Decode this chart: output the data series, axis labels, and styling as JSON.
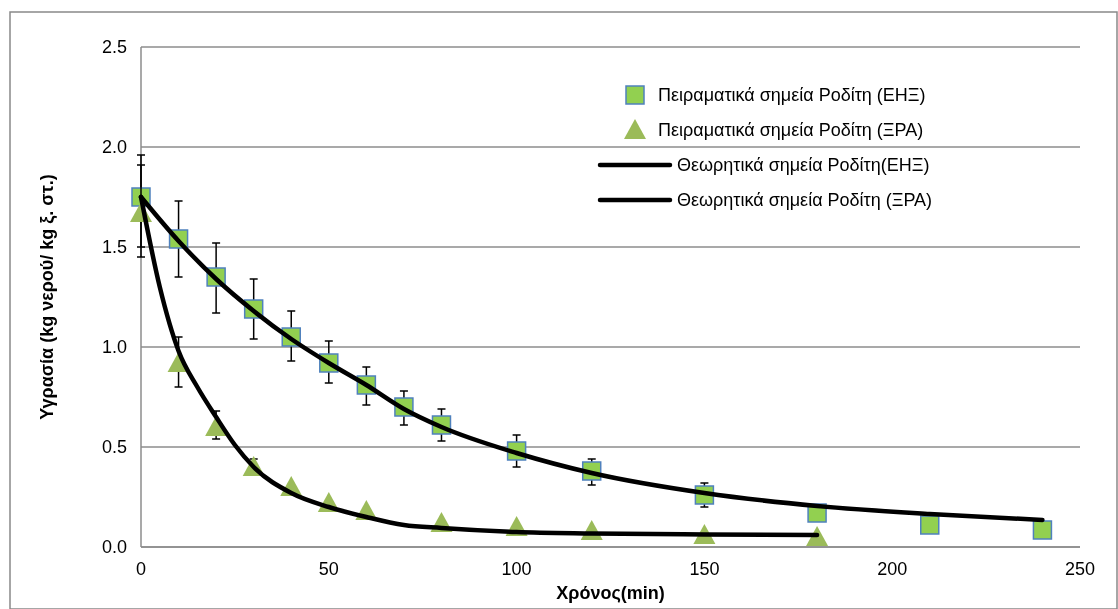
{
  "chart_data": {
    "type": "scatter",
    "xlabel": "Χρόνος(min)",
    "ylabel": "Υγρασία (kg νερού/ kg ξ. στ.)",
    "xlim": [
      0,
      250
    ],
    "xticks": [
      0,
      50,
      100,
      150,
      200,
      250
    ],
    "ylim": [
      0,
      2.5
    ],
    "yticks": [
      {
        "value": 0,
        "label": "0.0"
      },
      {
        "value": 0.5,
        "label": "0.5"
      },
      {
        "value": 1,
        "label": "1.0"
      },
      {
        "value": 1.5,
        "label": "1.5"
      },
      {
        "value": 2,
        "label": "2.0"
      },
      {
        "value": 2.5,
        "label": "2.5"
      }
    ],
    "grid": "y",
    "legend": "top right",
    "series": [
      {
        "name": "Πειραματικά σημεία Ροδίτη (ΕΗΞ)",
        "marker": "square",
        "color": "#92d050",
        "x": [
          0,
          10,
          20,
          30,
          40,
          50,
          60,
          70,
          80,
          100,
          120,
          150,
          180,
          210,
          240
        ],
        "values": [
          1.75,
          1.54,
          1.35,
          1.19,
          1.05,
          0.92,
          0.81,
          0.7,
          0.61,
          0.48,
          0.38,
          0.26,
          0.17,
          0.11,
          0.085
        ],
        "errors": [
          [
            1.45,
            1.96
          ],
          [
            1.35,
            1.73
          ],
          [
            1.17,
            1.52
          ],
          [
            1.04,
            1.34
          ],
          [
            0.93,
            1.18
          ],
          [
            0.82,
            1.03
          ],
          [
            0.71,
            0.9
          ],
          [
            0.61,
            0.78
          ],
          [
            0.53,
            0.69
          ],
          [
            0.4,
            0.56
          ],
          [
            0.31,
            0.44
          ],
          [
            0.2,
            0.32
          ],
          null,
          null,
          null
        ]
      },
      {
        "name": "Πειραματικά σημεία Ροδίτη (ΞΡΑ)",
        "marker": "triangle",
        "color": "#9bbb59",
        "x": [
          0,
          10,
          20,
          30,
          40,
          50,
          60,
          80,
          100,
          120,
          150,
          180
        ],
        "values": [
          1.67,
          0.92,
          0.6,
          0.4,
          0.3,
          0.22,
          0.18,
          0.12,
          0.1,
          0.08,
          0.06,
          0.05
        ],
        "errors": [
          [
            1.5,
            1.91
          ],
          [
            0.8,
            1.05
          ],
          [
            0.54,
            0.68
          ],
          [
            0.36,
            0.44
          ],
          null,
          null,
          null,
          null,
          null,
          null,
          null,
          null
        ]
      },
      {
        "name": "Θεωρητικά σημεία Ροδίτη(ΕΗΞ)",
        "type": "line",
        "marker": "none",
        "line_style": "solid",
        "color": "#000000",
        "x": [
          0,
          10,
          20,
          30,
          40,
          50,
          60,
          70,
          80,
          100,
          120,
          150,
          180,
          210,
          240
        ],
        "values": [
          1.75,
          1.53,
          1.34,
          1.18,
          1.04,
          0.92,
          0.81,
          0.69,
          0.6,
          0.47,
          0.37,
          0.27,
          0.205,
          0.165,
          0.135
        ]
      },
      {
        "name": "Θεωρητικά σημεία Ροδίτη (ΞΡΑ)",
        "type": "line",
        "marker": "none",
        "line_style": "solid",
        "color": "#000000",
        "x": [
          0,
          5,
          10,
          15,
          20,
          25,
          30,
          40,
          50,
          60,
          70,
          80,
          100,
          120,
          150,
          180
        ],
        "values": [
          1.75,
          1.3,
          0.98,
          0.8,
          0.65,
          0.51,
          0.4,
          0.27,
          0.2,
          0.15,
          0.11,
          0.095,
          0.075,
          0.068,
          0.063,
          0.06
        ]
      }
    ]
  }
}
